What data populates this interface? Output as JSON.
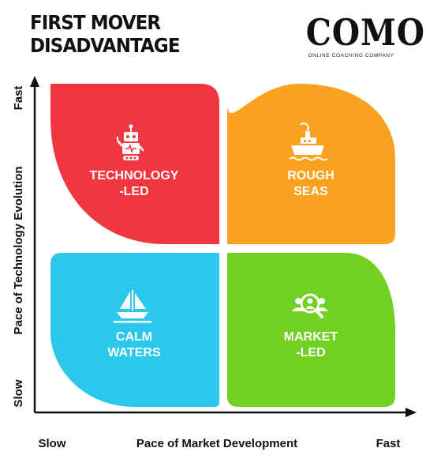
{
  "title": {
    "line1": "FIRST MOVER",
    "line2": "DISADVANTAGE"
  },
  "brand": {
    "name": "COMO",
    "tagline": "ONLINE COACHING COMPANY"
  },
  "axes": {
    "x_label": "Pace of Market Development",
    "x_min": "Slow",
    "x_max": "Fast",
    "y_label": "Pace of Technology Evolution",
    "y_min": "Slow",
    "y_max": "Fast"
  },
  "quadrants": {
    "top_left": {
      "line1": "TECHNOLOGY",
      "line2": "-LED",
      "color": "#F2363F",
      "icon": "robot-icon"
    },
    "top_right": {
      "line1": "ROUGH",
      "line2": "SEAS",
      "color": "#F9A21F",
      "icon": "ship-icon"
    },
    "bottom_left": {
      "line1": "CALM",
      "line2": "WATERS",
      "color": "#2BC8EC",
      "icon": "sailboat-icon"
    },
    "bottom_right": {
      "line1": "MARKET",
      "line2": "-LED",
      "color": "#72D023",
      "icon": "people-search-icon"
    }
  }
}
